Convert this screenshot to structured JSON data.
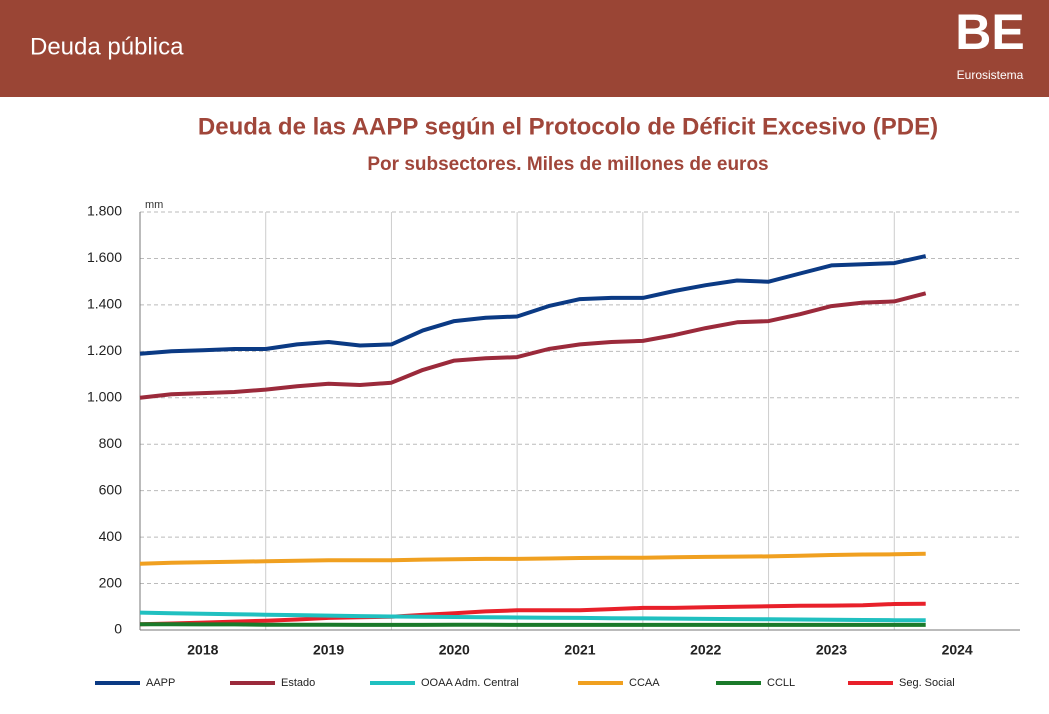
{
  "header": {
    "title": "Deuda pública",
    "logo": "BE",
    "logo_subtitle": "Eurosistema"
  },
  "chart_data": {
    "type": "line",
    "title": "Deuda de las AAPP según el Protocolo de Déficit Excesivo (PDE)",
    "subtitle": "Por subsectores. Miles de millones de euros",
    "ylabel": "mm",
    "x": [
      2018,
      2018.25,
      2018.5,
      2018.75,
      2019,
      2019.25,
      2019.5,
      2019.75,
      2020,
      2020.25,
      2020.5,
      2020.75,
      2021,
      2021.25,
      2021.5,
      2021.75,
      2022,
      2022.25,
      2022.5,
      2022.75,
      2023,
      2023.25,
      2023.5,
      2023.75,
      2024,
      2024.25
    ],
    "xlim": [
      2018,
      2025
    ],
    "xticks": [
      2018,
      2019,
      2020,
      2021,
      2022,
      2023,
      2024
    ],
    "ylim": [
      0,
      1800
    ],
    "yticks": [
      0,
      200,
      400,
      600,
      800,
      {
        "value": 1000,
        "label": "1.000"
      },
      {
        "value": 1200,
        "label": "1.200"
      },
      {
        "value": 1400,
        "label": "1.400"
      },
      {
        "value": 1600,
        "label": "1.600"
      },
      {
        "value": 1800,
        "label": "1.800"
      }
    ],
    "grid": true,
    "legend": "bottom",
    "series": [
      {
        "name": "AAPP",
        "color": "#0b3a84",
        "values": [
          1190,
          1200,
          1205,
          1210,
          1210,
          1230,
          1240,
          1225,
          1230,
          1290,
          1330,
          1345,
          1350,
          1395,
          1425,
          1430,
          1430,
          1460,
          1485,
          1505,
          1500,
          1535,
          1570,
          1575,
          1580,
          1610
        ]
      },
      {
        "name": "Estado",
        "color": "#9b2a3b",
        "values": [
          1000,
          1015,
          1020,
          1025,
          1035,
          1050,
          1060,
          1055,
          1065,
          1120,
          1160,
          1170,
          1175,
          1210,
          1230,
          1240,
          1245,
          1270,
          1300,
          1325,
          1330,
          1360,
          1395,
          1410,
          1415,
          1450
        ]
      },
      {
        "name": "OOAA Adm. Central",
        "color": "#20c0c0",
        "values": [
          75,
          72,
          70,
          68,
          66,
          64,
          62,
          60,
          58,
          57,
          56,
          55,
          54,
          53,
          52,
          51,
          50,
          49,
          48,
          47,
          46,
          45,
          44,
          43,
          42,
          42
        ]
      },
      {
        "name": "CCAA",
        "color": "#f0a020",
        "values": [
          285,
          290,
          292,
          294,
          296,
          298,
          300,
          300,
          300,
          303,
          305,
          306,
          306,
          308,
          310,
          311,
          311,
          313,
          315,
          316,
          317,
          320,
          323,
          325,
          326,
          328
        ]
      },
      {
        "name": "CCLL",
        "color": "#1a7a2a",
        "values": [
          25,
          25,
          24,
          24,
          23,
          23,
          23,
          22,
          22,
          22,
          23,
          23,
          22,
          22,
          22,
          22,
          22,
          22,
          22,
          22,
          22,
          22,
          22,
          22,
          22,
          22
        ]
      },
      {
        "name": "Seg. Social",
        "color": "#e8202a",
        "values": [
          25,
          28,
          32,
          36,
          40,
          45,
          52,
          55,
          57,
          65,
          72,
          80,
          85,
          85,
          85,
          90,
          95,
          95,
          98,
          100,
          102,
          104,
          105,
          107,
          112,
          113
        ]
      }
    ]
  }
}
